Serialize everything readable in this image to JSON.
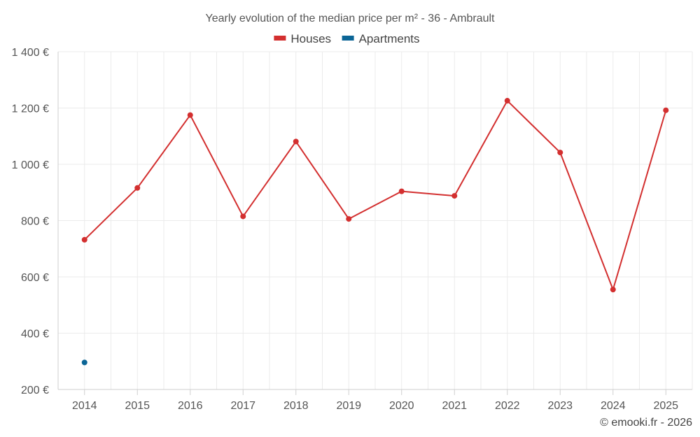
{
  "chart_data": {
    "type": "line",
    "title": "Yearly evolution of the median price per m² - 36 - Ambrault",
    "xlabel": "",
    "ylabel": "",
    "categories": [
      "2014",
      "2015",
      "2016",
      "2017",
      "2018",
      "2019",
      "2020",
      "2021",
      "2022",
      "2023",
      "2024",
      "2025"
    ],
    "ylim": [
      200,
      1400
    ],
    "yticks": [
      200,
      400,
      600,
      800,
      1000,
      1200,
      1400
    ],
    "ytick_labels": [
      "200 €",
      "400 €",
      "600 €",
      "800 €",
      "1 000 €",
      "1 200 €",
      "1 400 €"
    ],
    "grid": true,
    "legend_position": "top-center",
    "series": [
      {
        "name": "Houses",
        "color": "#d32f2f",
        "values": [
          732,
          916,
          1175,
          815,
          1081,
          806,
          904,
          888,
          1226,
          1042,
          555,
          1192
        ]
      },
      {
        "name": "Apartments",
        "color": "#0b6596",
        "values": [
          296,
          null,
          null,
          null,
          null,
          null,
          null,
          null,
          null,
          null,
          null,
          null
        ]
      }
    ]
  },
  "credit": "© emooki.fr - 2026"
}
